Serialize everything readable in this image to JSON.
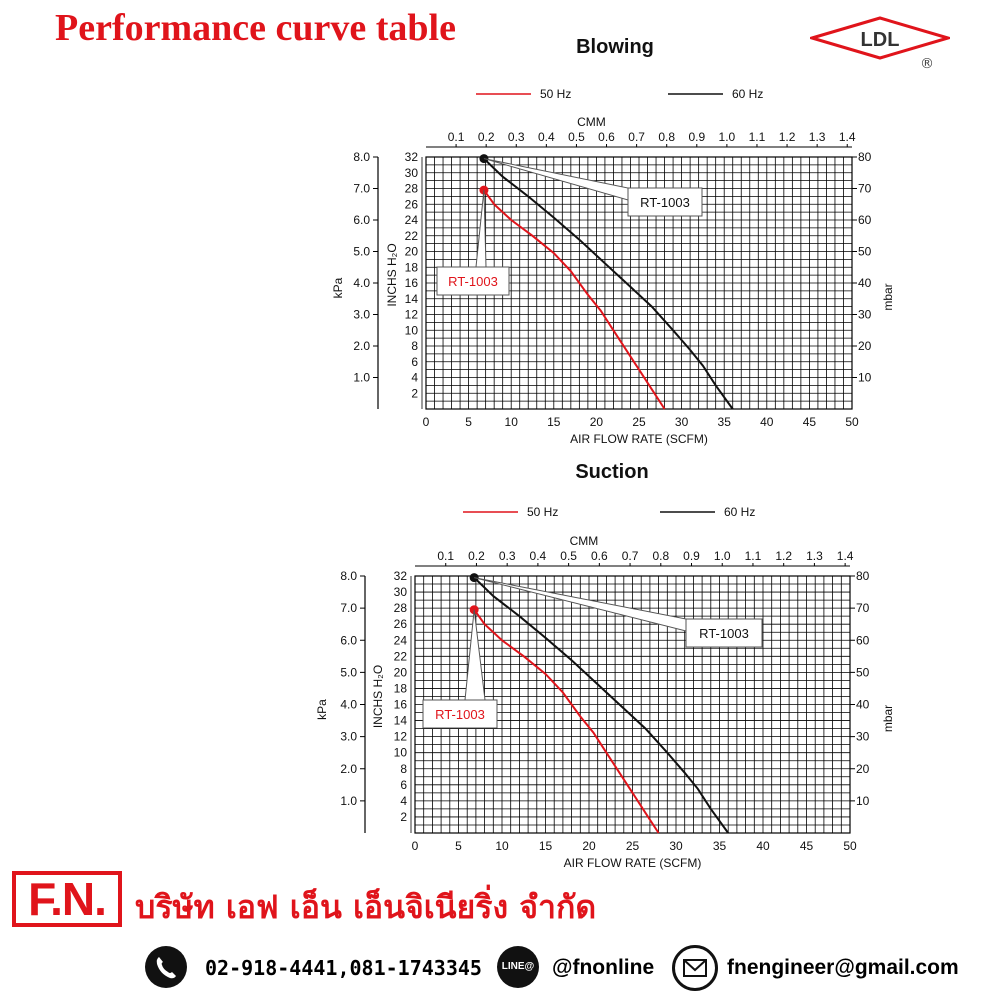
{
  "header": {
    "title": "Performance curve table",
    "logo_text": "LDL",
    "logo_mark": "®"
  },
  "colors": {
    "red": "#e0141b",
    "black": "#111111",
    "grid": "#000000"
  },
  "chart_data": [
    {
      "type": "line",
      "title": "Blowing",
      "xlabel": "AIR FLOW RATE (SCFM)",
      "top_axis_label": "CMM",
      "ylabel_left_outer": "kPa",
      "ylabel_left_inner": "INCHS H₂O",
      "ylabel_right": "mbar",
      "xlim": [
        0,
        50
      ],
      "ylim": [
        0,
        32
      ],
      "x_ticks": [
        "0",
        "5",
        "10",
        "15",
        "20",
        "25",
        "30",
        "35",
        "40",
        "45",
        "50"
      ],
      "top_ticks": [
        "0.1",
        "0.2",
        "0.3",
        "0.4",
        "0.5",
        "0.6",
        "0.7",
        "0.8",
        "0.9",
        "1.0",
        "1.1",
        "1.2",
        "1.3",
        "1.4"
      ],
      "inch_ticks": [
        "2",
        "4",
        "6",
        "8",
        "10",
        "12",
        "14",
        "16",
        "18",
        "20",
        "22",
        "24",
        "26",
        "28",
        "30",
        "32"
      ],
      "kpa_ticks": [
        "1.0",
        "2.0",
        "3.0",
        "4.0",
        "5.0",
        "6.0",
        "7.0",
        "8.0"
      ],
      "mbar_ticks": [
        "10",
        "20",
        "30",
        "40",
        "50",
        "60",
        "70",
        "80"
      ],
      "legend": [
        {
          "label": "50 Hz",
          "color": "#e0141b"
        },
        {
          "label": "60 Hz",
          "color": "#111111"
        }
      ],
      "series": [
        {
          "name": "50 Hz",
          "color": "#e0141b",
          "callout": "RT-1003",
          "x": [
            6.8,
            8,
            10,
            12.5,
            15,
            17,
            19,
            20.5,
            22,
            23.5,
            25,
            26.5,
            28
          ],
          "y": [
            27.8,
            26,
            24,
            22,
            19.8,
            17.5,
            14.5,
            12.5,
            10,
            7.5,
            5,
            2.5,
            0
          ]
        },
        {
          "name": "60 Hz",
          "color": "#111111",
          "callout": "RT-1003",
          "x": [
            6.8,
            9,
            12,
            15,
            18,
            21,
            24,
            26.5,
            29,
            31,
            32.5,
            34,
            36
          ],
          "y": [
            31.8,
            29.5,
            27,
            24.3,
            21.5,
            18.5,
            15.5,
            13,
            10,
            7.5,
            5.5,
            3,
            0
          ]
        }
      ]
    },
    {
      "type": "line",
      "title": "Suction",
      "xlabel": "AIR FLOW RATE (SCFM)",
      "top_axis_label": "CMM",
      "ylabel_left_outer": "kPa",
      "ylabel_left_inner": "INCHS H₂O",
      "ylabel_right": "mbar",
      "xlim": [
        0,
        50
      ],
      "ylim": [
        0,
        32
      ],
      "x_ticks": [
        "0",
        "5",
        "10",
        "15",
        "20",
        "25",
        "30",
        "35",
        "40",
        "45",
        "50"
      ],
      "top_ticks": [
        "0.1",
        "0.2",
        "0.3",
        "0.4",
        "0.5",
        "0.6",
        "0.7",
        "0.8",
        "0.9",
        "1.0",
        "1.1",
        "1.2",
        "1.3",
        "1.4"
      ],
      "inch_ticks": [
        "2",
        "4",
        "6",
        "8",
        "10",
        "12",
        "14",
        "16",
        "18",
        "20",
        "22",
        "24",
        "26",
        "28",
        "30",
        "32"
      ],
      "kpa_ticks": [
        "1.0",
        "2.0",
        "3.0",
        "4.0",
        "5.0",
        "6.0",
        "7.0",
        "8.0"
      ],
      "mbar_ticks": [
        "10",
        "20",
        "30",
        "40",
        "50",
        "60",
        "70",
        "80"
      ],
      "legend": [
        {
          "label": "50 Hz",
          "color": "#e0141b"
        },
        {
          "label": "60 Hz",
          "color": "#111111"
        }
      ],
      "series": [
        {
          "name": "50 Hz",
          "color": "#e0141b",
          "callout": "RT-1003",
          "x": [
            6.8,
            8,
            10,
            12.5,
            15,
            17,
            19,
            20.5,
            22,
            23.5,
            25,
            26.5,
            28
          ],
          "y": [
            27.8,
            26,
            24,
            22,
            19.8,
            17.5,
            14.5,
            12.5,
            10,
            7.5,
            5,
            2.5,
            0
          ]
        },
        {
          "name": "60 Hz",
          "color": "#111111",
          "callout": "RT-1003",
          "x": [
            6.8,
            9,
            12,
            15,
            18,
            21,
            24,
            26.5,
            29,
            31,
            32.5,
            34,
            36
          ],
          "y": [
            31.8,
            29.5,
            27,
            24.3,
            21.5,
            18.5,
            15.5,
            13,
            10,
            7.5,
            5.5,
            3,
            0
          ]
        }
      ]
    }
  ],
  "footer": {
    "brand": "F.N.",
    "company": "บริษัท เอฟ เอ็น เอ็นจิเนียริ่ง จำกัด",
    "phone_icon": "phone-icon",
    "phone": "02-918-4441,081-1743345",
    "line_icon_text": "LINE@",
    "line_id": "@fnonline",
    "email_icon": "mail-icon",
    "email": "fnengineer@gmail.com"
  }
}
